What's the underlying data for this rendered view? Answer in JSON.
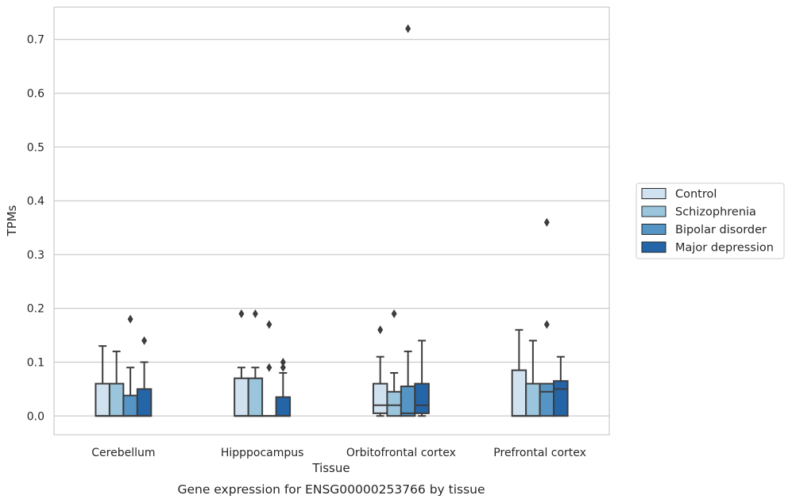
{
  "chart_data": {
    "type": "box",
    "title": "",
    "caption": "Gene expression for ENSG00000253766 by tissue",
    "xlabel": "Tissue",
    "ylabel": "TPMs",
    "ylim": [
      -0.035,
      0.76
    ],
    "yticks": [
      "0.0",
      "0.1",
      "0.2",
      "0.3",
      "0.4",
      "0.5",
      "0.6",
      "0.7"
    ],
    "grid": true,
    "legend_position": "right",
    "categories": [
      "Cerebellum",
      "Hipppocampus",
      "Orbitofrontal cortex",
      "Prefrontal cortex"
    ],
    "series": [
      {
        "name": "Control",
        "color": "#d0e1f0",
        "boxes": [
          {
            "whislo": 0.0,
            "q1": 0.0,
            "med": 0.0,
            "q3": 0.06,
            "whishi": 0.13,
            "fliers": []
          },
          {
            "whislo": 0.0,
            "q1": 0.0,
            "med": 0.0,
            "q3": 0.07,
            "whishi": 0.09,
            "fliers": [
              0.19
            ]
          },
          {
            "whislo": 0.0,
            "q1": 0.005,
            "med": 0.02,
            "q3": 0.06,
            "whishi": 0.11,
            "fliers": [
              0.16
            ]
          },
          {
            "whislo": 0.0,
            "q1": 0.0,
            "med": 0.0,
            "q3": 0.085,
            "whishi": 0.16,
            "fliers": []
          }
        ]
      },
      {
        "name": "Schizophrenia",
        "color": "#9ac5dd",
        "boxes": [
          {
            "whislo": 0.0,
            "q1": 0.0,
            "med": 0.0,
            "q3": 0.06,
            "whishi": 0.12,
            "fliers": []
          },
          {
            "whislo": 0.0,
            "q1": 0.0,
            "med": 0.0,
            "q3": 0.07,
            "whishi": 0.09,
            "fliers": [
              0.19
            ]
          },
          {
            "whislo": 0.0,
            "q1": 0.0,
            "med": 0.02,
            "q3": 0.045,
            "whishi": 0.08,
            "fliers": [
              0.19
            ]
          },
          {
            "whislo": 0.0,
            "q1": 0.0,
            "med": 0.0,
            "q3": 0.06,
            "whishi": 0.14,
            "fliers": []
          }
        ]
      },
      {
        "name": "Bipolar disorder",
        "color": "#5495c5",
        "boxes": [
          {
            "whislo": 0.0,
            "q1": 0.0,
            "med": 0.0,
            "q3": 0.038,
            "whishi": 0.09,
            "fliers": [
              0.18
            ]
          },
          {
            "whislo": 0.0,
            "q1": 0.0,
            "med": 0.0,
            "q3": 0.0,
            "whishi": 0.0,
            "fliers": [
              0.17,
              0.09
            ]
          },
          {
            "whislo": 0.0,
            "q1": 0.0,
            "med": 0.005,
            "q3": 0.055,
            "whishi": 0.12,
            "fliers": [
              0.72
            ]
          },
          {
            "whislo": 0.0,
            "q1": 0.0,
            "med": 0.045,
            "q3": 0.06,
            "whishi": 0.06,
            "fliers": [
              0.36,
              0.17
            ]
          }
        ]
      },
      {
        "name": "Major depression",
        "color": "#2465a8",
        "boxes": [
          {
            "whislo": 0.0,
            "q1": 0.0,
            "med": 0.0,
            "q3": 0.05,
            "whishi": 0.1,
            "fliers": [
              0.14
            ]
          },
          {
            "whislo": 0.0,
            "q1": 0.0,
            "med": 0.0,
            "q3": 0.035,
            "whishi": 0.08,
            "fliers": [
              0.1,
              0.09
            ]
          },
          {
            "whislo": 0.0,
            "q1": 0.005,
            "med": 0.02,
            "q3": 0.06,
            "whishi": 0.14,
            "fliers": []
          },
          {
            "whislo": 0.0,
            "q1": 0.0,
            "med": 0.05,
            "q3": 0.065,
            "whishi": 0.11,
            "fliers": []
          }
        ]
      }
    ]
  }
}
